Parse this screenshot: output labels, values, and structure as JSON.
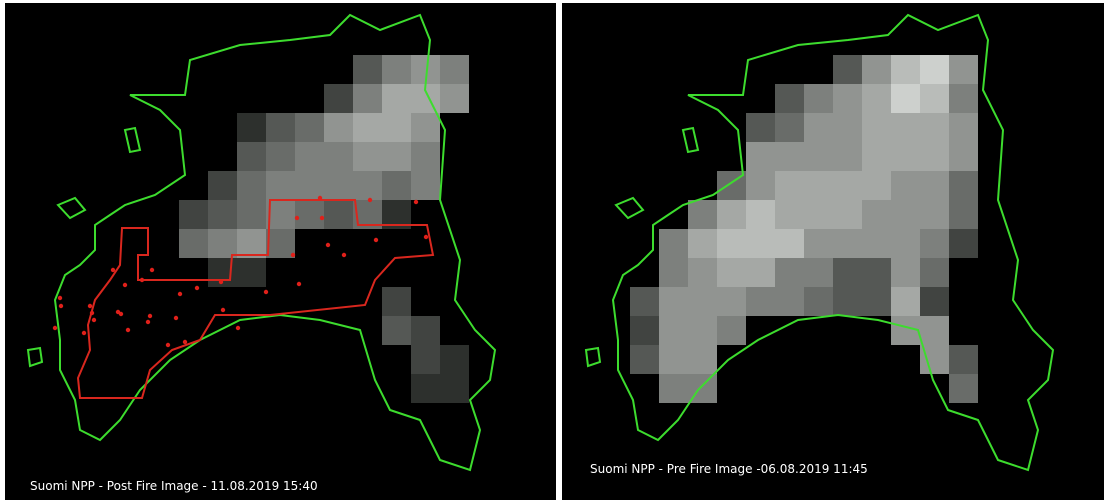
{
  "panels": [
    {
      "caption": "Suomi NPP - Post Fire Image - 11.08.2019 15:40"
    },
    {
      "caption": "Suomi NPP - Pre Fire Image -06.08.2019 11:45"
    }
  ]
}
